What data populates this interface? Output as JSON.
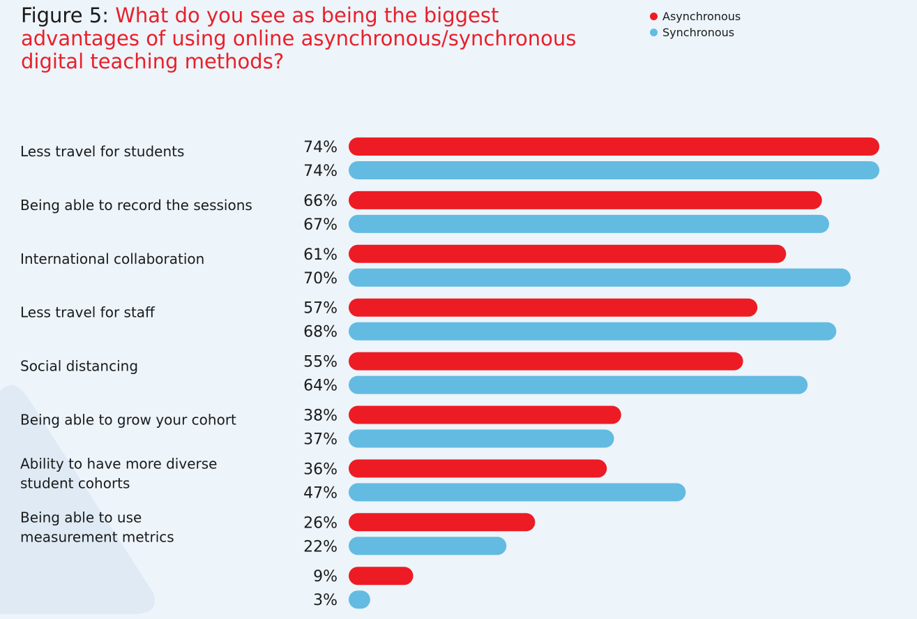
{
  "title": {
    "prefix": "Figure 5: ",
    "text": "What do you see as being the biggest advantages of using online asynchronous/synchronous digital teaching methods?"
  },
  "colors": {
    "asynchronous": "#ed1c24",
    "synchronous": "#63bbe1",
    "background": "#edf4fa",
    "decoration": "#dfeaf4"
  },
  "chart_data": {
    "type": "bar",
    "orientation": "horizontal",
    "legend_position": "top-right",
    "categories": [
      "Less travel for students",
      "Being able to record the sessions",
      "International collaboration",
      "Less travel for staff",
      "Social distancing",
      "Being able to grow your cohort",
      "Ability to have more diverse student cohorts",
      "Being able to use measurement metrics",
      ""
    ],
    "series": [
      {
        "name": "Asynchronous",
        "values": [
          74,
          66,
          61,
          57,
          55,
          38,
          36,
          26,
          9
        ],
        "labels": [
          "74%",
          "66%",
          "61%",
          "57%",
          "55%",
          "38%",
          "36%",
          "26%",
          "9%"
        ]
      },
      {
        "name": "Synchronous",
        "values": [
          74,
          67,
          70,
          68,
          64,
          37,
          47,
          22,
          3
        ],
        "labels": [
          "74%",
          "67%",
          "70%",
          "68%",
          "64%",
          "37%",
          "47%",
          "22%",
          "3%"
        ]
      }
    ],
    "category_lines": [
      [
        "Less travel for students"
      ],
      [
        "Being able to record the sessions"
      ],
      [
        "International collaboration"
      ],
      [
        "Less travel for staff"
      ],
      [
        "Social distancing"
      ],
      [
        "Being able to grow your cohort"
      ],
      [
        "Ability to have more diverse",
        "student cohorts"
      ],
      [
        "Being able to use",
        "measurement metrics"
      ],
      []
    ],
    "xlim": [
      0,
      74
    ],
    "grid": false
  }
}
